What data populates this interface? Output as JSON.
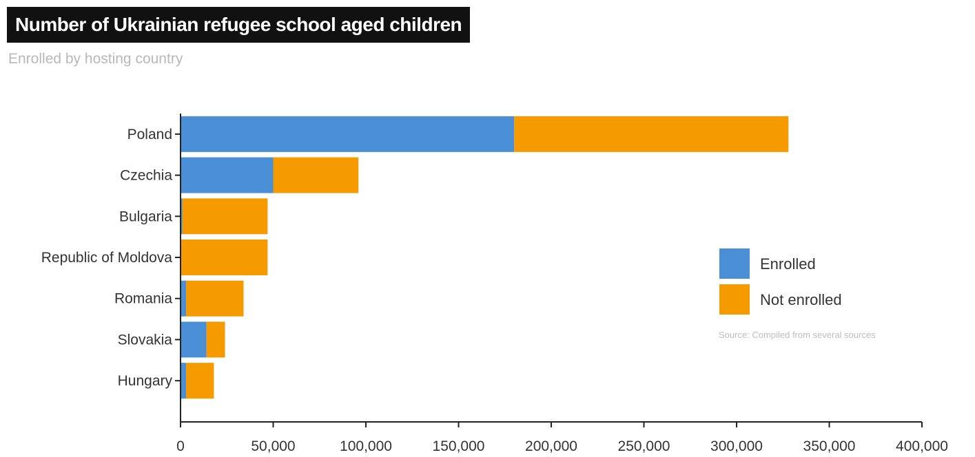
{
  "title": "Number of Ukrainian refugee school aged children",
  "subtitle": "Enrolled by hosting country",
  "source": "Source: Compiled from several sources",
  "chart_data": {
    "type": "bar",
    "orientation": "horizontal",
    "stacked": true,
    "categories": [
      "Poland",
      "Czechia",
      "Bulgaria",
      "Republic of Moldova",
      "Romania",
      "Slovakia",
      "Hungary"
    ],
    "series": [
      {
        "name": "Enrolled",
        "color": "#4a8fd6",
        "values": [
          180000,
          50000,
          1000,
          0,
          3000,
          14000,
          3000
        ]
      },
      {
        "name": "Not enrolled",
        "color": "#f59b00",
        "values": [
          148000,
          46000,
          46000,
          47000,
          31000,
          10000,
          15000
        ]
      }
    ],
    "xlim": [
      0,
      400000
    ],
    "xticks": [
      0,
      50000,
      100000,
      150000,
      200000,
      250000,
      300000,
      350000,
      400000
    ],
    "xtick_labels": [
      "0",
      "50,000",
      "100,000",
      "150,000",
      "200,000",
      "250,000",
      "300,000",
      "350,000",
      "400,000"
    ],
    "legend_position": "right",
    "grid": false
  }
}
